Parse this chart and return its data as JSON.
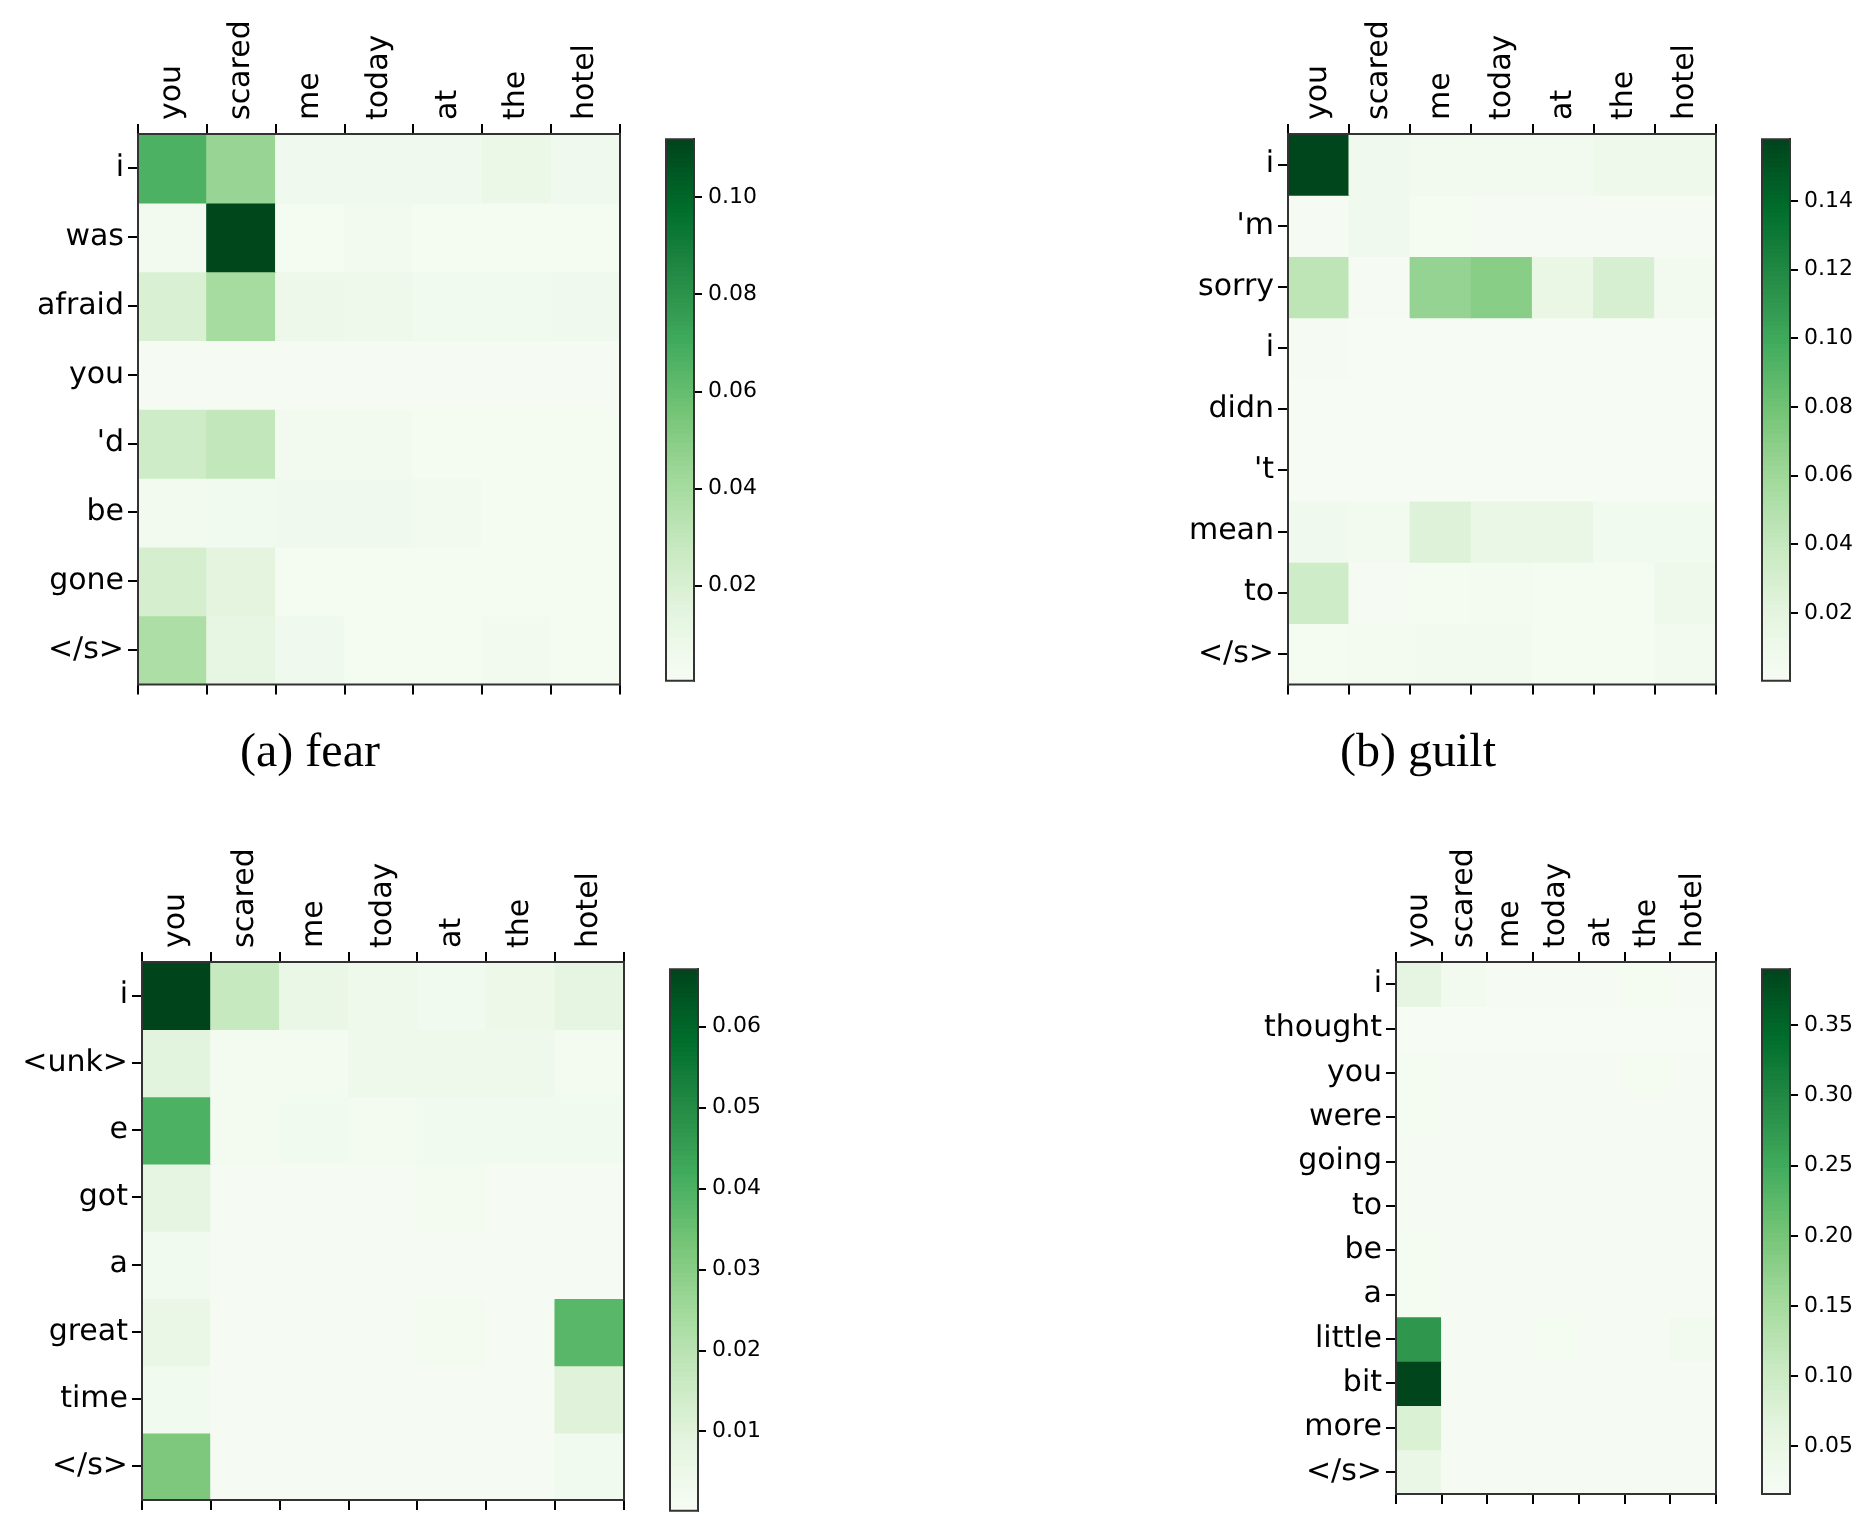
{
  "chart_data": [
    {
      "type": "heatmap",
      "title": "(a) fear",
      "categories": [
        "you",
        "scared",
        "me",
        "today",
        "at",
        "the",
        "hotel"
      ],
      "y_categories": [
        "i",
        "was",
        "afraid",
        "you",
        "'d",
        "be",
        "gone",
        "</s>"
      ],
      "cells": [
        [
          0.067,
          0.045,
          0.006,
          0.006,
          0.006,
          0.01,
          0.006
        ],
        [
          0.004,
          0.111,
          0.003,
          0.004,
          0.003,
          0.003,
          0.003
        ],
        [
          0.02,
          0.04,
          0.008,
          0.007,
          0.005,
          0.005,
          0.006
        ],
        [
          0.002,
          0.002,
          0.002,
          0.002,
          0.002,
          0.002,
          0.002
        ],
        [
          0.025,
          0.03,
          0.004,
          0.004,
          0.003,
          0.003,
          0.003
        ],
        [
          0.004,
          0.005,
          0.006,
          0.006,
          0.004,
          0.003,
          0.003
        ],
        [
          0.022,
          0.015,
          0.003,
          0.003,
          0.003,
          0.003,
          0.003
        ],
        [
          0.038,
          0.013,
          0.006,
          0.003,
          0.003,
          0.004,
          0.003
        ]
      ],
      "clim": [
        0.0004,
        0.112
      ],
      "cticks": [
        0.02,
        0.04,
        0.06,
        0.08,
        {
          "value": 0.1,
          "label": "0.10"
        }
      ]
    },
    {
      "type": "heatmap",
      "title": "(b) guilt",
      "categories": [
        "you",
        "scared",
        "me",
        "today",
        "at",
        "the",
        "hotel"
      ],
      "y_categories": [
        "i",
        "'m",
        "sorry",
        "i",
        "didn",
        "'t",
        "mean",
        "to",
        "</s>"
      ],
      "cells": [
        [
          0.157,
          0.008,
          0.006,
          0.006,
          0.006,
          0.01,
          0.01
        ],
        [
          0.003,
          0.008,
          0.004,
          0.002,
          0.002,
          0.002,
          0.002
        ],
        [
          0.045,
          0.003,
          0.065,
          0.07,
          0.015,
          0.03,
          0.006
        ],
        [
          0.003,
          0.001,
          0.001,
          0.001,
          0.001,
          0.001,
          0.001
        ],
        [
          0.001,
          0.001,
          0.001,
          0.001,
          0.001,
          0.001,
          0.001
        ],
        [
          0.001,
          0.001,
          0.001,
          0.001,
          0.001,
          0.001,
          0.001
        ],
        [
          0.008,
          0.006,
          0.025,
          0.014,
          0.014,
          0.007,
          0.007
        ],
        [
          0.035,
          0.003,
          0.004,
          0.005,
          0.004,
          0.004,
          0.01
        ],
        [
          0.004,
          0.005,
          0.006,
          0.006,
          0.004,
          0.004,
          0.006
        ]
      ],
      "clim": [
        0.0003,
        0.158
      ],
      "cticks": [
        0.02,
        0.04,
        0.06,
        0.08,
        {
          "value": 0.1,
          "label": "0.10"
        },
        0.12,
        0.14
      ]
    },
    {
      "type": "heatmap",
      "categories": [
        "you",
        "scared",
        "me",
        "today",
        "at",
        "the",
        "hotel"
      ],
      "y_categories": [
        "i",
        "<unk>",
        "e",
        "got",
        "a",
        "great",
        "time",
        "</s>"
      ],
      "cells": [
        [
          0.067,
          0.017,
          0.006,
          0.004,
          0.003,
          0.005,
          0.008
        ],
        [
          0.009,
          0.002,
          0.002,
          0.004,
          0.004,
          0.004,
          0.002
        ],
        [
          0.04,
          0.002,
          0.003,
          0.002,
          0.003,
          0.003,
          0.003
        ],
        [
          0.008,
          0.001,
          0.001,
          0.001,
          0.002,
          0.001,
          0.001
        ],
        [
          0.003,
          0.001,
          0.001,
          0.001,
          0.001,
          0.001,
          0.001
        ],
        [
          0.006,
          0.001,
          0.001,
          0.001,
          0.002,
          0.001,
          0.038
        ],
        [
          0.003,
          0.001,
          0.001,
          0.001,
          0.001,
          0.001,
          0.01
        ],
        [
          0.032,
          0.001,
          0.001,
          0.001,
          0.001,
          0.001,
          0.003
        ]
      ],
      "clim": [
        0.0002,
        0.0671
      ],
      "cticks": [
        0.01,
        0.02,
        0.03,
        0.04,
        0.05,
        0.06
      ]
    },
    {
      "type": "heatmap",
      "categories": [
        "you",
        "scared",
        "me",
        "today",
        "at",
        "the",
        "hotel"
      ],
      "y_categories": [
        "i",
        "thought",
        "you",
        "were",
        "going",
        "to",
        "be",
        "a",
        "little",
        "bit",
        "more",
        "</s>"
      ],
      "cells": [
        [
          0.06,
          0.03,
          0.02,
          0.02,
          0.02,
          0.025,
          0.02
        ],
        [
          0.018,
          0.018,
          0.018,
          0.018,
          0.018,
          0.018,
          0.018
        ],
        [
          0.025,
          0.02,
          0.02,
          0.02,
          0.02,
          0.025,
          0.02
        ],
        [
          0.025,
          0.022,
          0.02,
          0.02,
          0.02,
          0.02,
          0.02
        ],
        [
          0.022,
          0.02,
          0.02,
          0.02,
          0.02,
          0.02,
          0.02
        ],
        [
          0.022,
          0.02,
          0.02,
          0.02,
          0.02,
          0.02,
          0.02
        ],
        [
          0.025,
          0.02,
          0.02,
          0.022,
          0.02,
          0.02,
          0.02
        ],
        [
          0.025,
          0.02,
          0.02,
          0.02,
          0.02,
          0.02,
          0.02
        ],
        [
          0.28,
          0.02,
          0.02,
          0.025,
          0.02,
          0.02,
          0.03
        ],
        [
          0.389,
          0.02,
          0.022,
          0.02,
          0.02,
          0.02,
          0.02
        ],
        [
          0.08,
          0.02,
          0.02,
          0.02,
          0.02,
          0.02,
          0.02
        ],
        [
          0.05,
          0.02,
          0.02,
          0.02,
          0.02,
          0.02,
          0.02
        ]
      ],
      "clim": [
        0.016,
        0.39
      ],
      "cticks": [
        0.05,
        {
          "value": 0.1,
          "label": "0.10"
        },
        0.15,
        {
          "value": 0.2,
          "label": "0.20"
        },
        0.25,
        {
          "value": 0.3,
          "label": "0.30"
        },
        0.35
      ]
    }
  ]
}
